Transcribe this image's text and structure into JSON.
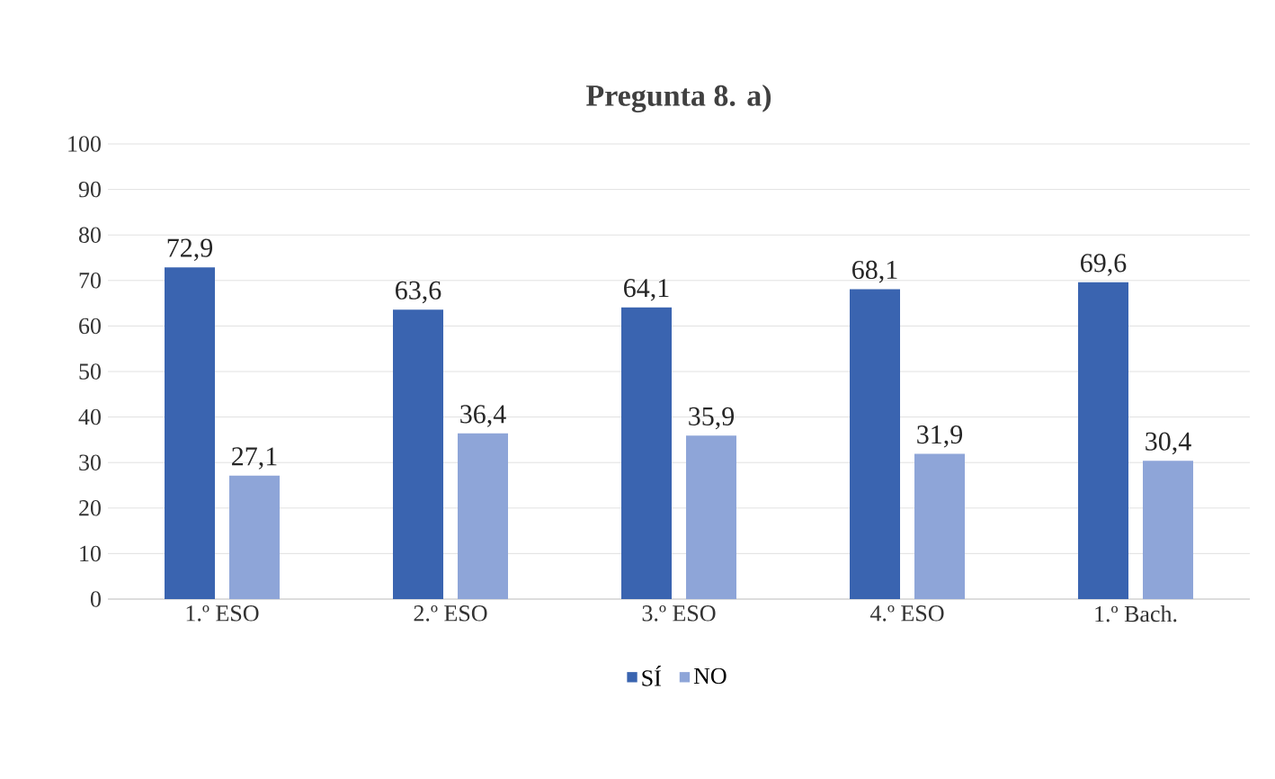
{
  "chart_data": {
    "type": "bar",
    "title": "Pregunta 8. a)",
    "categories": [
      "1.º ESO",
      "2.º ESO",
      "3.º ESO",
      "4.º ESO",
      "1.º Bach."
    ],
    "series": [
      {
        "name": "SÍ",
        "color": "#3a64b0",
        "values": [
          72.9,
          63.6,
          64.1,
          68.1,
          69.6
        ],
        "value_labels": [
          "72,9",
          "63,6",
          "64,1",
          "68,1",
          "69,6"
        ]
      },
      {
        "name": "NO",
        "color": "#8ea5d8",
        "values": [
          27.1,
          36.4,
          35.9,
          31.9,
          30.4
        ],
        "value_labels": [
          "27,1",
          "36,4",
          "35,9",
          "31,9",
          "30,4"
        ]
      }
    ],
    "ylim": [
      0,
      100
    ],
    "yticks": [
      0,
      10,
      20,
      30,
      40,
      50,
      60,
      70,
      80,
      90,
      100
    ],
    "grid": "y",
    "legend": "bottom"
  }
}
